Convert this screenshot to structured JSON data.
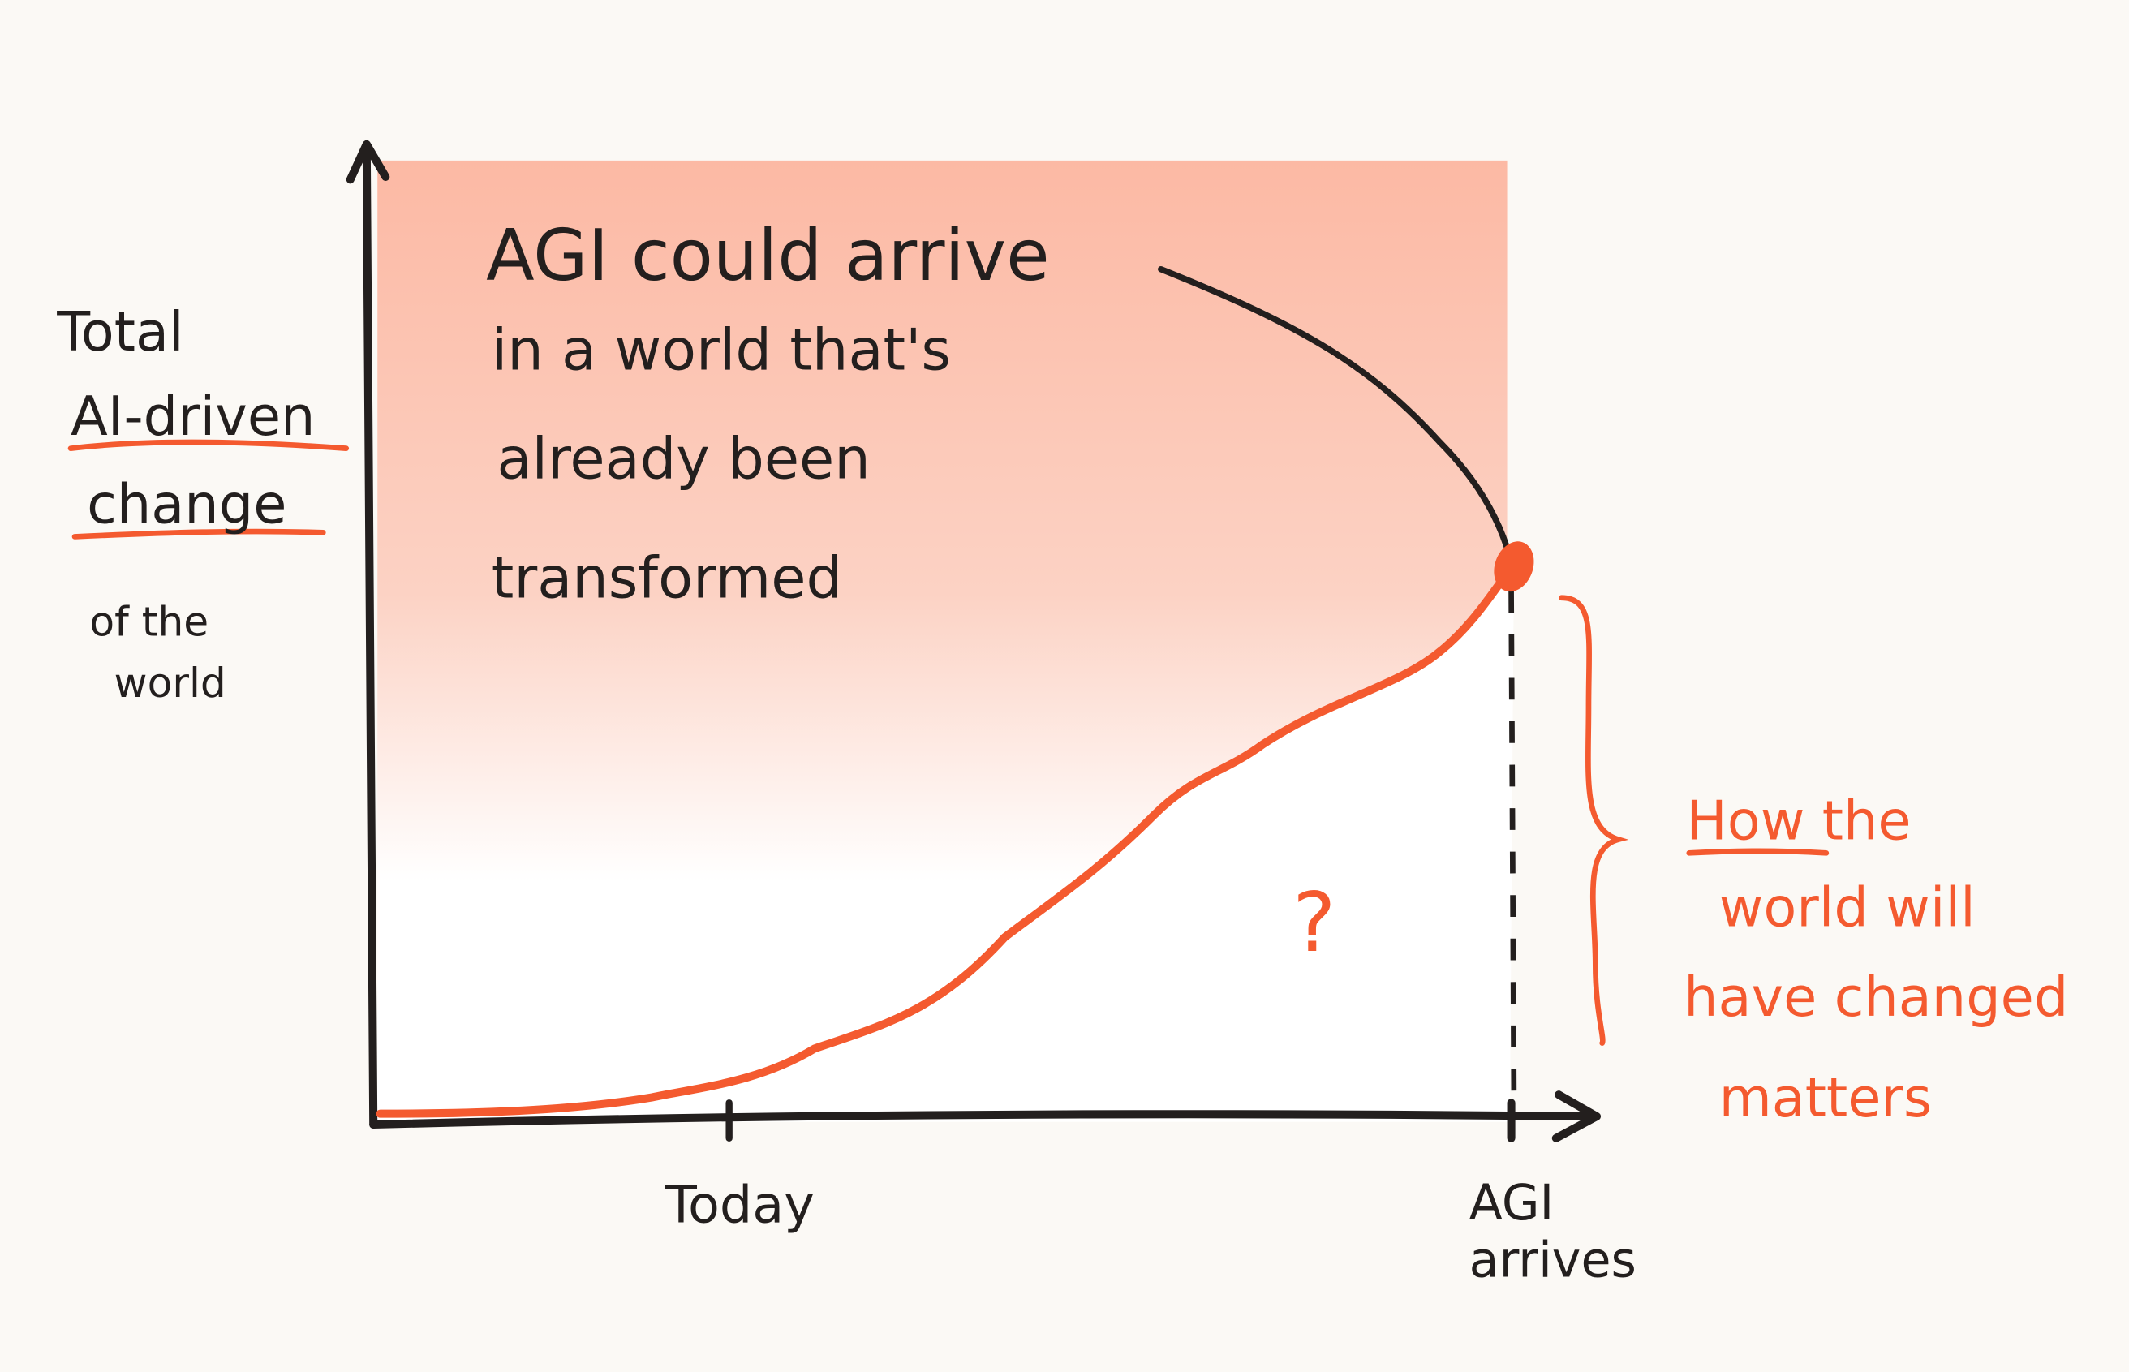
{
  "y_axis_label": {
    "lines": [
      "Total",
      "AI-driven",
      "change",
      "of the",
      "world"
    ]
  },
  "annotation": {
    "lines": [
      "AGI could arrive",
      "in a world that's",
      "already been",
      "transformed"
    ]
  },
  "question_mark": "?",
  "side_note": {
    "lines": [
      "How the",
      "world will",
      "have changed",
      "matters"
    ]
  },
  "x_labels": {
    "today": "Today",
    "agi": {
      "lines": [
        "AGI",
        "arrives"
      ]
    }
  }
}
